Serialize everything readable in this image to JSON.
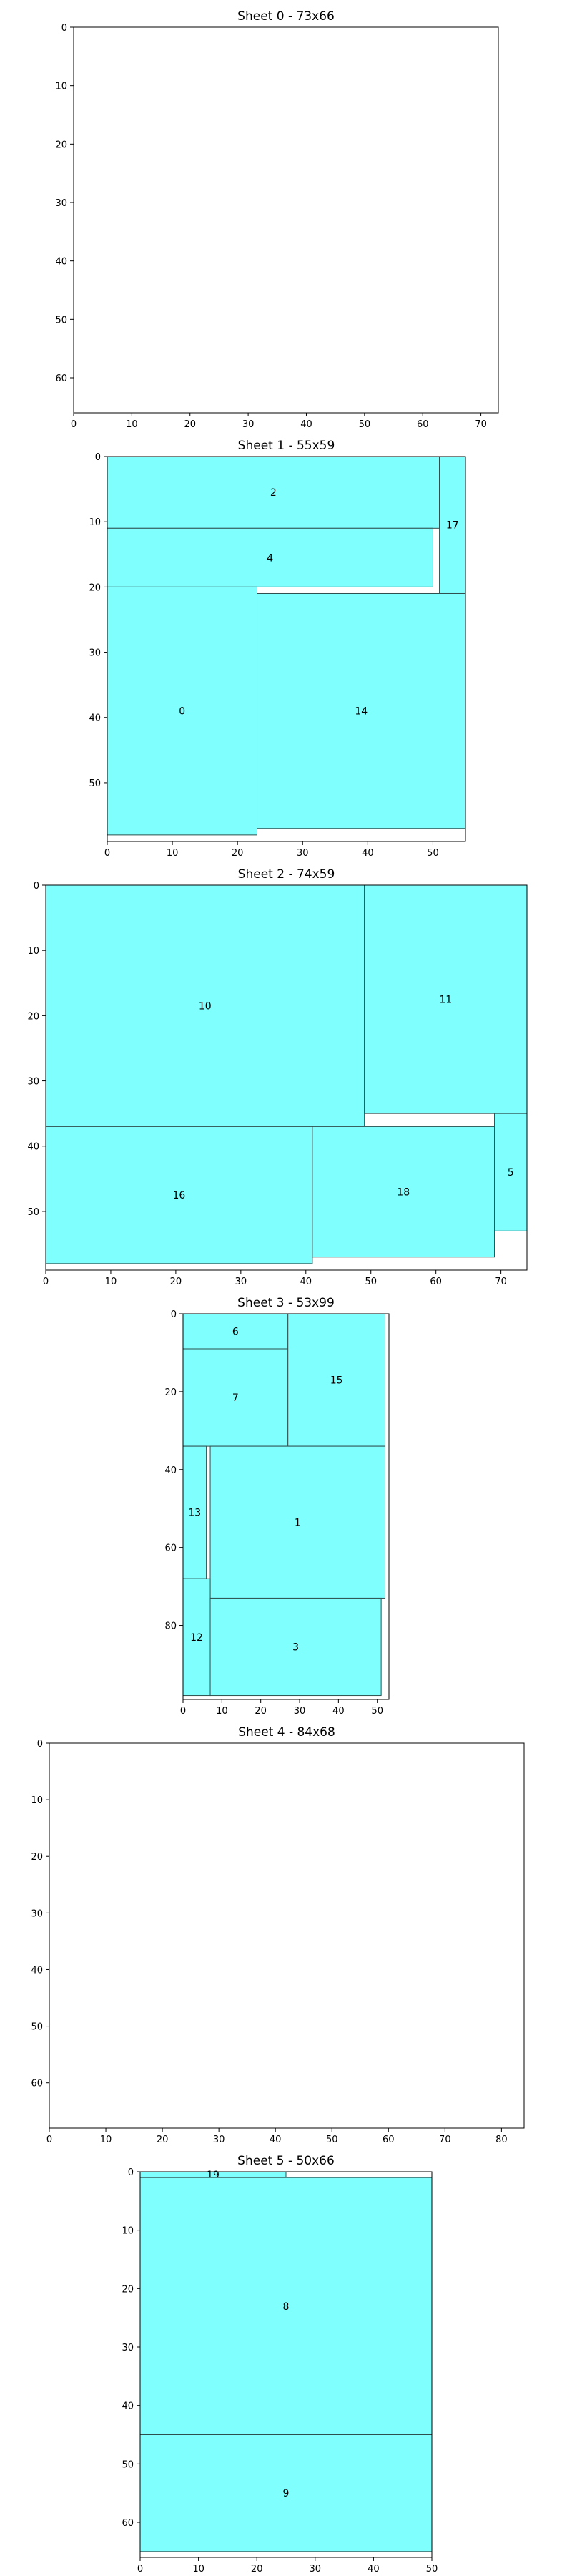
{
  "chart_data": {
    "type": "packing",
    "fill_color": "#80ffff",
    "edge_color": "#2f4f4f",
    "y_axis_inverted": true,
    "grid": false,
    "sheets": [
      {
        "title": "Sheet 0 - 73x66",
        "width": 73,
        "height": 66,
        "xticks": [
          0,
          10,
          20,
          30,
          40,
          50,
          60,
          70
        ],
        "yticks": [
          0,
          10,
          20,
          30,
          40,
          50,
          60
        ],
        "pieces": []
      },
      {
        "title": "Sheet 1 - 55x59",
        "width": 55,
        "height": 59,
        "xticks": [
          0,
          10,
          20,
          30,
          40,
          50
        ],
        "yticks": [
          0,
          10,
          20,
          30,
          40,
          50
        ],
        "pieces": [
          {
            "label": "2",
            "x": 0,
            "y": 0,
            "w": 51,
            "h": 11
          },
          {
            "label": "17",
            "x": 51,
            "y": 0,
            "w": 4,
            "h": 21
          },
          {
            "label": "4",
            "x": 0,
            "y": 11,
            "w": 50,
            "h": 9
          },
          {
            "label": "0",
            "x": 0,
            "y": 20,
            "w": 23,
            "h": 38
          },
          {
            "label": "14",
            "x": 23,
            "y": 21,
            "w": 32,
            "h": 36
          }
        ]
      },
      {
        "title": "Sheet 2 - 74x59",
        "width": 74,
        "height": 59,
        "xticks": [
          0,
          10,
          20,
          30,
          40,
          50,
          60,
          70
        ],
        "yticks": [
          0,
          10,
          20,
          30,
          40,
          50
        ],
        "pieces": [
          {
            "label": "10",
            "x": 0,
            "y": 0,
            "w": 49,
            "h": 37
          },
          {
            "label": "11",
            "x": 49,
            "y": 0,
            "w": 25,
            "h": 35
          },
          {
            "label": "16",
            "x": 0,
            "y": 37,
            "w": 41,
            "h": 21
          },
          {
            "label": "18",
            "x": 41,
            "y": 37,
            "w": 28,
            "h": 20
          },
          {
            "label": "5",
            "x": 69,
            "y": 35,
            "w": 5,
            "h": 18
          }
        ]
      },
      {
        "title": "Sheet 3 - 53x99",
        "width": 53,
        "height": 99,
        "xticks": [
          0,
          10,
          20,
          30,
          40,
          50
        ],
        "yticks": [
          0,
          20,
          40,
          60,
          80
        ],
        "pieces": [
          {
            "label": "6",
            "x": 0,
            "y": 0,
            "w": 27,
            "h": 9
          },
          {
            "label": "7",
            "x": 0,
            "y": 9,
            "w": 27,
            "h": 25
          },
          {
            "label": "15",
            "x": 27,
            "y": 0,
            "w": 25,
            "h": 34
          },
          {
            "label": "13",
            "x": 0,
            "y": 34,
            "w": 6,
            "h": 34
          },
          {
            "label": "1",
            "x": 7,
            "y": 34,
            "w": 45,
            "h": 39
          },
          {
            "label": "12",
            "x": 0,
            "y": 68,
            "w": 7,
            "h": 30
          },
          {
            "label": "3",
            "x": 7,
            "y": 73,
            "w": 44,
            "h": 25
          }
        ]
      },
      {
        "title": "Sheet 4 - 84x68",
        "width": 84,
        "height": 68,
        "xticks": [
          0,
          10,
          20,
          30,
          40,
          50,
          60,
          70,
          80
        ],
        "yticks": [
          0,
          10,
          20,
          30,
          40,
          50,
          60
        ],
        "pieces": []
      },
      {
        "title": "Sheet 5 - 50x66",
        "width": 50,
        "height": 66,
        "xticks": [
          0,
          10,
          20,
          30,
          40,
          50
        ],
        "yticks": [
          0,
          10,
          20,
          30,
          40,
          50,
          60
        ],
        "pieces": [
          {
            "label": "19",
            "x": 0,
            "y": 0,
            "w": 25,
            "h": 1
          },
          {
            "label": "8",
            "x": 0,
            "y": 1,
            "w": 50,
            "h": 44
          },
          {
            "label": "9",
            "x": 0,
            "y": 45,
            "w": 50,
            "h": 20
          }
        ]
      }
    ]
  }
}
